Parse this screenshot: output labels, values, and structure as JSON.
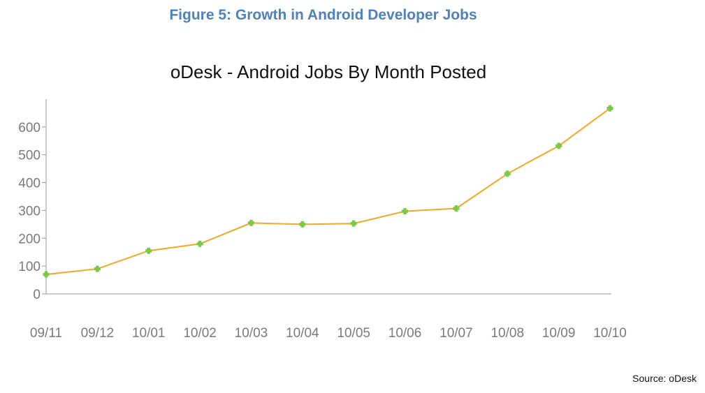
{
  "figure_caption": "Figure 5: Growth in Android Developer Jobs",
  "source_note": "Source: oDesk",
  "colors": {
    "caption": "#4f81bd",
    "line": "#f5a623",
    "marker": "#7ac943",
    "axis": "#999999",
    "tick_text": "#7a7a7a"
  },
  "chart_data": {
    "type": "line",
    "title": "oDesk - Android Jobs By Month Posted",
    "xlabel": "",
    "ylabel": "",
    "categories": [
      "09/11",
      "09/12",
      "10/01",
      "10/02",
      "10/03",
      "10/04",
      "10/05",
      "10/06",
      "10/07",
      "10/08",
      "10/09",
      "10/10"
    ],
    "series": [
      {
        "values": [
          70,
          90,
          155,
          180,
          255,
          250,
          253,
          297,
          307,
          432,
          532,
          667
        ]
      }
    ],
    "y_ticks": [
      0,
      100,
      200,
      300,
      400,
      500,
      600
    ],
    "ylim": [
      0,
      700
    ],
    "grid": false,
    "legend": "none"
  }
}
